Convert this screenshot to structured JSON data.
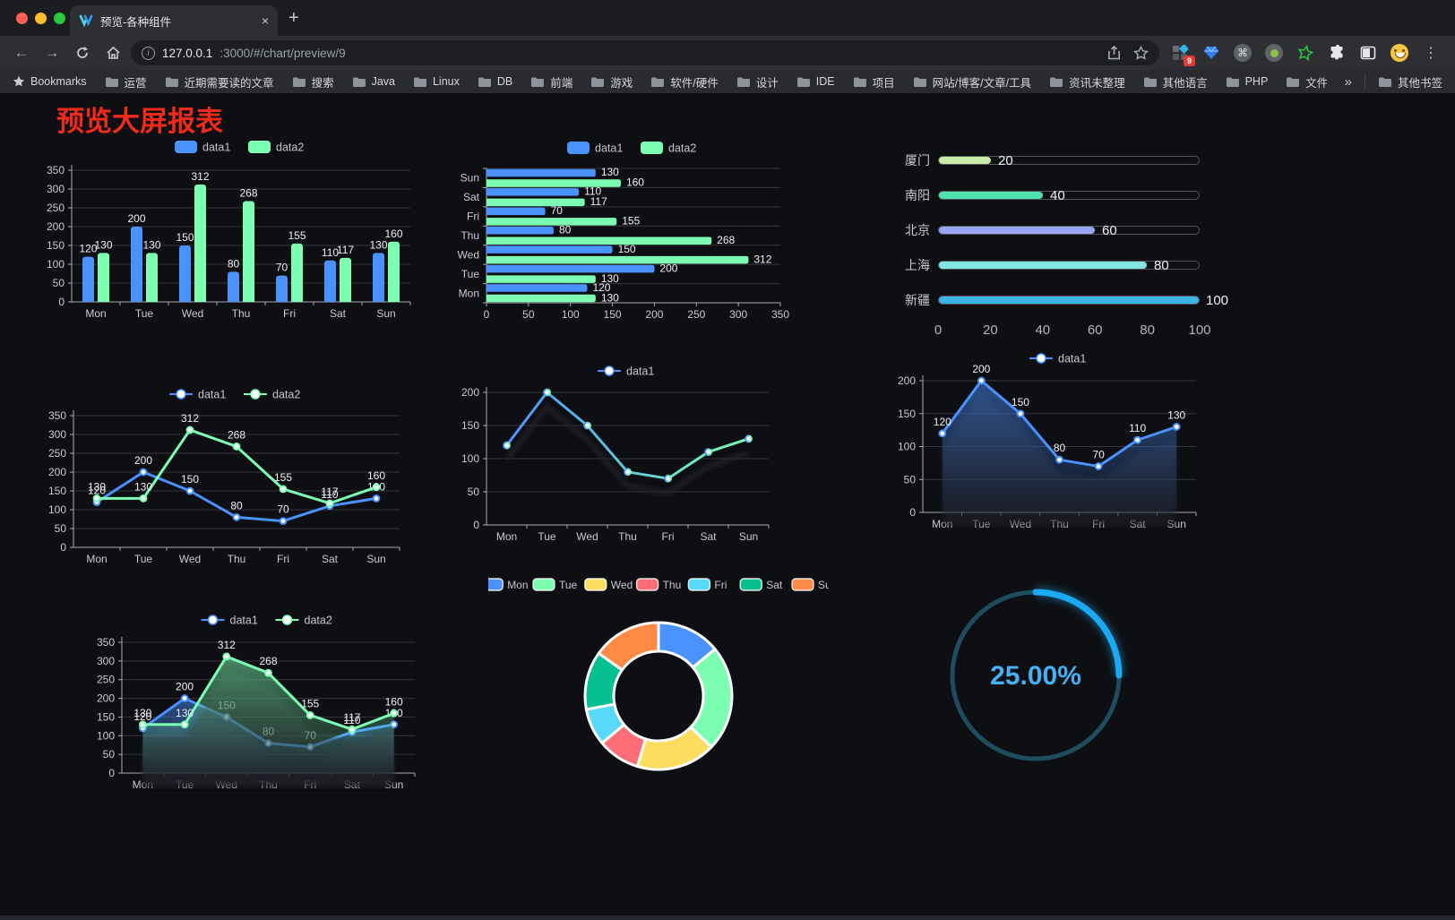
{
  "browser": {
    "tab": {
      "title": "预览-各种组件",
      "close_glyph": "×",
      "new_tab_glyph": "+"
    },
    "nav": {
      "back_glyph": "←",
      "forward_glyph": "→"
    },
    "url": {
      "host": "127.0.0.1",
      "rest": ":3000/#/chart/preview/9"
    },
    "extension_badge": "9",
    "command_glyph": "⌘",
    "menu_glyph": "⋮",
    "bookmarks_label": "Bookmarks",
    "bookmarks": [
      "运营",
      "近期需要读的文章",
      "搜索",
      "Java",
      "Linux",
      "DB",
      "前端",
      "游戏",
      "软件/硬件",
      "设计",
      "IDE",
      "项目",
      "网站/博客/文章/工具",
      "资讯未整理",
      "其他语言",
      "PHP",
      "文件服务器"
    ],
    "bookmarks_overflow_glyph": "»",
    "other_bookmarks": "其他书签"
  },
  "page": {
    "title": "预览大屏报表",
    "title_color": "#ee2b1a"
  },
  "chart_data": [
    {
      "id": "bar-vertical",
      "type": "bar",
      "categories": [
        "Mon",
        "Tue",
        "Wed",
        "Thu",
        "Fri",
        "Sat",
        "Sun"
      ],
      "series": [
        {
          "name": "data1",
          "color": "#4992ff",
          "values": [
            120,
            200,
            150,
            80,
            70,
            110,
            130
          ]
        },
        {
          "name": "data2",
          "color": "#7cffb2",
          "values": [
            130,
            130,
            312,
            268,
            155,
            117,
            160
          ]
        }
      ],
      "yticks": [
        0,
        50,
        100,
        150,
        200,
        250,
        300,
        350
      ],
      "legend_position": "top",
      "grid": true
    },
    {
      "id": "bar-horizontal",
      "type": "bar-horizontal",
      "categories_top_to_bottom": [
        "Sun",
        "Sat",
        "Fri",
        "Thu",
        "Wed",
        "Tue",
        "Mon"
      ],
      "series": [
        {
          "name": "data1",
          "color": "#4992ff",
          "values": [
            130,
            110,
            70,
            80,
            150,
            200,
            120
          ]
        },
        {
          "name": "data2",
          "color": "#7cffb2",
          "values": [
            160,
            117,
            155,
            268,
            312,
            130,
            130
          ]
        }
      ],
      "xticks": [
        0,
        50,
        100,
        150,
        200,
        250,
        300,
        350
      ],
      "legend_position": "top",
      "grid": true
    },
    {
      "id": "progress-bars",
      "type": "progress",
      "max": 100,
      "xticks": [
        0,
        20,
        40,
        60,
        80,
        100
      ],
      "rows": [
        {
          "label": "厦门",
          "value": 20,
          "color": "#c9eda9"
        },
        {
          "label": "南阳",
          "value": 40,
          "color": "#50e3ae"
        },
        {
          "label": "北京",
          "value": 60,
          "color": "#9aa5f0"
        },
        {
          "label": "上海",
          "value": 80,
          "color": "#7fe6e2"
        },
        {
          "label": "新疆",
          "value": 100,
          "color": "#3db4e6"
        }
      ]
    },
    {
      "id": "line-two-series",
      "type": "line",
      "categories": [
        "Mon",
        "Tue",
        "Wed",
        "Thu",
        "Fri",
        "Sat",
        "Sun"
      ],
      "series": [
        {
          "name": "data1",
          "color": "#4992ff",
          "values": [
            120,
            200,
            150,
            80,
            70,
            110,
            130
          ]
        },
        {
          "name": "data2",
          "color": "#7cffb2",
          "values": [
            130,
            130,
            312,
            268,
            155,
            117,
            160
          ]
        }
      ],
      "yticks": [
        0,
        50,
        100,
        150,
        200,
        250,
        300,
        350
      ],
      "show_labels": true,
      "legend_position": "top"
    },
    {
      "id": "line-gradient",
      "type": "line",
      "categories": [
        "Mon",
        "Tue",
        "Wed",
        "Thu",
        "Fri",
        "Sat",
        "Sun"
      ],
      "series": [
        {
          "name": "data1",
          "color": "#4992ff",
          "color_end": "#7cffb2",
          "gradient": true,
          "values": [
            120,
            200,
            150,
            80,
            70,
            110,
            130
          ]
        }
      ],
      "yticks": [
        0,
        50,
        100,
        150,
        200
      ],
      "show_labels": false,
      "shadow": true,
      "legend_position": "top"
    },
    {
      "id": "area-single",
      "type": "area",
      "categories": [
        "Mon",
        "Tue",
        "Wed",
        "Thu",
        "Fri",
        "Sat",
        "Sun"
      ],
      "series": [
        {
          "name": "data1",
          "color": "#4992ff",
          "area": true,
          "values": [
            120,
            200,
            150,
            80,
            70,
            110,
            130
          ]
        }
      ],
      "yticks": [
        0,
        50,
        100,
        150,
        200
      ],
      "show_labels": true,
      "shadow": true,
      "legend_position": "top"
    },
    {
      "id": "area-two-series",
      "type": "area",
      "categories": [
        "Mon",
        "Tue",
        "Wed",
        "Thu",
        "Fri",
        "Sat",
        "Sun"
      ],
      "series": [
        {
          "name": "data1",
          "color": "#4992ff",
          "area": true,
          "values": [
            120,
            200,
            150,
            80,
            70,
            110,
            130
          ]
        },
        {
          "name": "data2",
          "color": "#7cffb2",
          "area": true,
          "values": [
            130,
            130,
            312,
            268,
            155,
            117,
            160
          ]
        }
      ],
      "yticks": [
        0,
        50,
        100,
        150,
        200,
        250,
        300,
        350
      ],
      "show_labels": true,
      "shadow": true,
      "legend_position": "top"
    },
    {
      "id": "donut",
      "type": "pie",
      "inner_radius_ratio": 0.61,
      "legend_position": "top",
      "items": [
        {
          "name": "Mon",
          "value": 120,
          "color": "#4992ff"
        },
        {
          "name": "Tue",
          "value": 200,
          "color": "#7cffb2"
        },
        {
          "name": "Wed",
          "value": 150,
          "color": "#fddd60"
        },
        {
          "name": "Thu",
          "value": 80,
          "color": "#ff6e76"
        },
        {
          "name": "Fri",
          "value": 70,
          "color": "#58d9f9"
        },
        {
          "name": "Sat",
          "value": 110,
          "color": "#05c091"
        },
        {
          "name": "Sun",
          "value": 130,
          "color": "#ff8a45"
        }
      ]
    },
    {
      "id": "gauge",
      "type": "gauge",
      "value_percent": 25,
      "label": "25.00%",
      "arc_color": "#1aa9f2",
      "track_color": "#1d4d5e",
      "text_color": "#46b0f5"
    }
  ]
}
